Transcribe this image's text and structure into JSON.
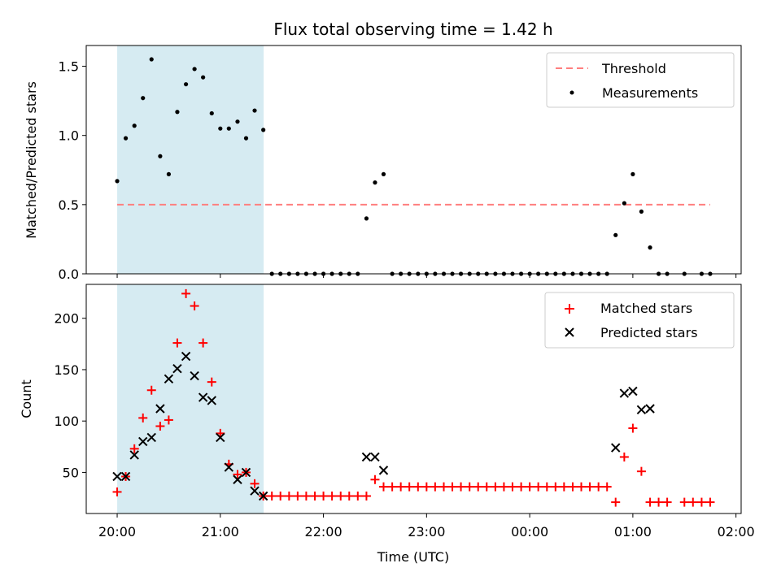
{
  "chart_data": {
    "title": "Flux total observing time = 1.42 h",
    "xlabel": "Time (UTC)",
    "x_tick_labels": [
      "20:00",
      "21:00",
      "22:00",
      "23:00",
      "00:00",
      "01:00",
      "02:00"
    ],
    "x_range_hours": [
      19.7,
      26.05
    ],
    "highlight_span_hours": [
      20.0,
      21.42
    ],
    "highlight_color": "#add8e6",
    "panels": [
      {
        "type": "scatter",
        "ylabel": "Matched/Predicted stars",
        "ylim": [
          0,
          1.65
        ],
        "y_ticks": [
          0.0,
          0.5,
          1.0,
          1.5
        ],
        "y_tick_labels": [
          "0.0",
          "0.5",
          "1.0",
          "1.5"
        ],
        "legend_position": "top-right",
        "series": [
          {
            "name": "Threshold",
            "kind": "line",
            "style": "dashed",
            "color": "#ff7f7f",
            "x": [
              20.0,
              25.75
            ],
            "y": [
              0.5,
              0.5
            ]
          },
          {
            "name": "Measurements",
            "kind": "scatter",
            "marker": "dot",
            "color": "#000000",
            "x": [
              20.0,
              20.083,
              20.167,
              20.25,
              20.333,
              20.417,
              20.5,
              20.583,
              20.667,
              20.75,
              20.833,
              20.917,
              21.0,
              21.083,
              21.167,
              21.25,
              21.333,
              21.417,
              21.5,
              21.583,
              21.667,
              21.75,
              21.833,
              21.917,
              22.0,
              22.083,
              22.167,
              22.25,
              22.333,
              22.417,
              22.5,
              22.583,
              22.667,
              22.75,
              22.833,
              22.917,
              23.0,
              23.083,
              23.167,
              23.25,
              23.333,
              23.417,
              23.5,
              23.583,
              23.667,
              23.75,
              23.833,
              23.917,
              24.0,
              24.083,
              24.167,
              24.25,
              24.333,
              24.417,
              24.5,
              24.583,
              24.667,
              24.75,
              24.833,
              24.917,
              25.0,
              25.083,
              25.167,
              25.25,
              25.333,
              25.5,
              25.667,
              25.75
            ],
            "y": [
              0.67,
              0.98,
              1.07,
              1.27,
              1.55,
              0.85,
              0.72,
              1.17,
              1.37,
              1.48,
              1.42,
              1.16,
              1.05,
              1.05,
              1.1,
              0.98,
              1.18,
              1.04,
              0,
              0,
              0,
              0,
              0,
              0,
              0,
              0,
              0,
              0,
              0,
              0.4,
              0.66,
              0.72,
              0,
              0,
              0,
              0,
              0,
              0,
              0,
              0,
              0,
              0,
              0,
              0,
              0,
              0,
              0,
              0,
              0,
              0,
              0,
              0,
              0,
              0,
              0,
              0,
              0,
              0,
              0.28,
              0.51,
              0.72,
              0.45,
              0.19,
              0,
              0,
              0,
              0,
              0
            ]
          }
        ]
      },
      {
        "type": "scatter",
        "ylabel": "Count",
        "ylim": [
          10,
          233
        ],
        "y_ticks": [
          50,
          100,
          150,
          200
        ],
        "y_tick_labels": [
          "50",
          "100",
          "150",
          "200"
        ],
        "legend_position": "top-right",
        "series": [
          {
            "name": "Matched stars",
            "kind": "scatter",
            "marker": "plus",
            "color": "#ff0000",
            "x": [
              20.0,
              20.083,
              20.167,
              20.25,
              20.333,
              20.417,
              20.5,
              20.583,
              20.667,
              20.75,
              20.833,
              20.917,
              21.0,
              21.083,
              21.167,
              21.25,
              21.333,
              21.417,
              21.5,
              21.583,
              21.667,
              21.75,
              21.833,
              21.917,
              22.0,
              22.083,
              22.167,
              22.25,
              22.333,
              22.417,
              22.5,
              22.583,
              22.667,
              22.75,
              22.833,
              22.917,
              23.0,
              23.083,
              23.167,
              23.25,
              23.333,
              23.417,
              23.5,
              23.583,
              23.667,
              23.75,
              23.833,
              23.917,
              24.0,
              24.083,
              24.167,
              24.25,
              24.333,
              24.417,
              24.5,
              24.583,
              24.667,
              24.75,
              24.833,
              24.917,
              25.0,
              25.083,
              25.167,
              25.25,
              25.333,
              25.5,
              25.583,
              25.667,
              25.75
            ],
            "y": [
              31,
              46,
              73,
              103,
              130,
              95,
              101,
              176,
              224,
              212,
              176,
              138,
              88,
              58,
              48,
              50,
              39,
              27,
              27,
              27,
              27,
              27,
              27,
              27,
              27,
              27,
              27,
              27,
              27,
              27,
              43,
              36,
              36,
              36,
              36,
              36,
              36,
              36,
              36,
              36,
              36,
              36,
              36,
              36,
              36,
              36,
              36,
              36,
              36,
              36,
              36,
              36,
              36,
              36,
              36,
              36,
              36,
              36,
              21,
              65,
              93,
              51,
              21,
              21,
              21,
              21,
              21,
              21,
              21
            ]
          },
          {
            "name": "Predicted stars",
            "kind": "scatter",
            "marker": "x",
            "color": "#000000",
            "x": [
              20.0,
              20.083,
              20.167,
              20.25,
              20.333,
              20.417,
              20.5,
              20.583,
              20.667,
              20.75,
              20.833,
              20.917,
              21.0,
              21.083,
              21.167,
              21.25,
              21.333,
              21.417,
              22.417,
              22.5,
              22.583,
              24.833,
              24.917,
              25.0,
              25.083,
              25.167
            ],
            "y": [
              46,
              46,
              67,
              80,
              84,
              112,
              141,
              151,
              163,
              144,
              123,
              120,
              84,
              55,
              43,
              50,
              32,
              27,
              65,
              65,
              52,
              74,
              127,
              129,
              111,
              112
            ]
          }
        ]
      }
    ]
  }
}
